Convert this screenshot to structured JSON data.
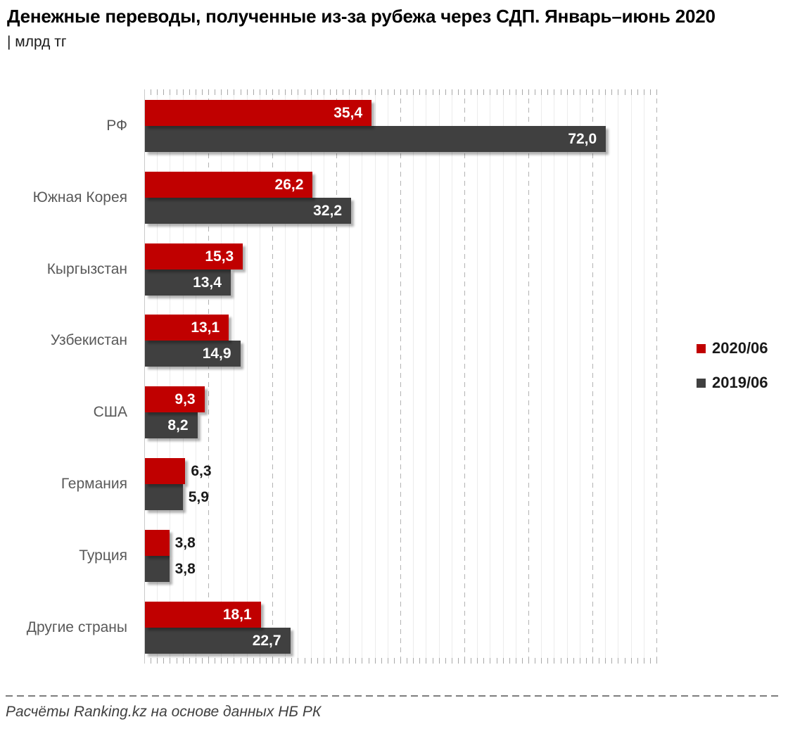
{
  "header": {
    "title": "Денежные переводы, полученные из-за рубежа через СДП. Январь–июнь 2020",
    "subtitle": "| млрд тг"
  },
  "chart_data": {
    "type": "bar",
    "orientation": "horizontal",
    "title": "Денежные переводы, полученные из-за рубежа через СДП. Январь–июнь 2020",
    "unit_label": "млрд тг",
    "categories": [
      "РФ",
      "Южная Корея",
      "Кыргызстан",
      "Узбекистан",
      "США",
      "Германия",
      "Турция",
      "Другие страны"
    ],
    "series": [
      {
        "name": "2020/06",
        "color": "#c00000",
        "values": [
          35.4,
          26.2,
          15.3,
          13.1,
          9.3,
          6.3,
          3.8,
          18.1
        ],
        "labels": [
          "35,4",
          "26,2",
          "15,3",
          "13,1",
          "9,3",
          "6,3",
          "3,8",
          "18,1"
        ]
      },
      {
        "name": "2019/06",
        "color": "#404040",
        "values": [
          72.0,
          32.2,
          13.4,
          14.9,
          8.2,
          5.9,
          3.8,
          22.7
        ],
        "labels": [
          "72,0",
          "32,2",
          "13,4",
          "14,9",
          "8,2",
          "5,9",
          "3,8",
          "22,7"
        ]
      }
    ],
    "xlim": [
      0,
      80
    ],
    "grid": {
      "minor_step": 2,
      "major_step": 10,
      "major_style": "dashed",
      "tick_step": 1
    },
    "legend": {
      "position": "right",
      "entries": [
        "2020/06",
        "2019/06"
      ]
    },
    "value_label_inside_threshold": 8
  },
  "footer": {
    "source": "Расчёты Ranking.kz на основе данных НБ РК"
  },
  "colors": {
    "series_2020": "#c00000",
    "series_2019": "#404040",
    "category_label": "#595959",
    "grid_minor": "#ececec",
    "grid_major": "#b3b3b3",
    "source_text": "#404040"
  }
}
